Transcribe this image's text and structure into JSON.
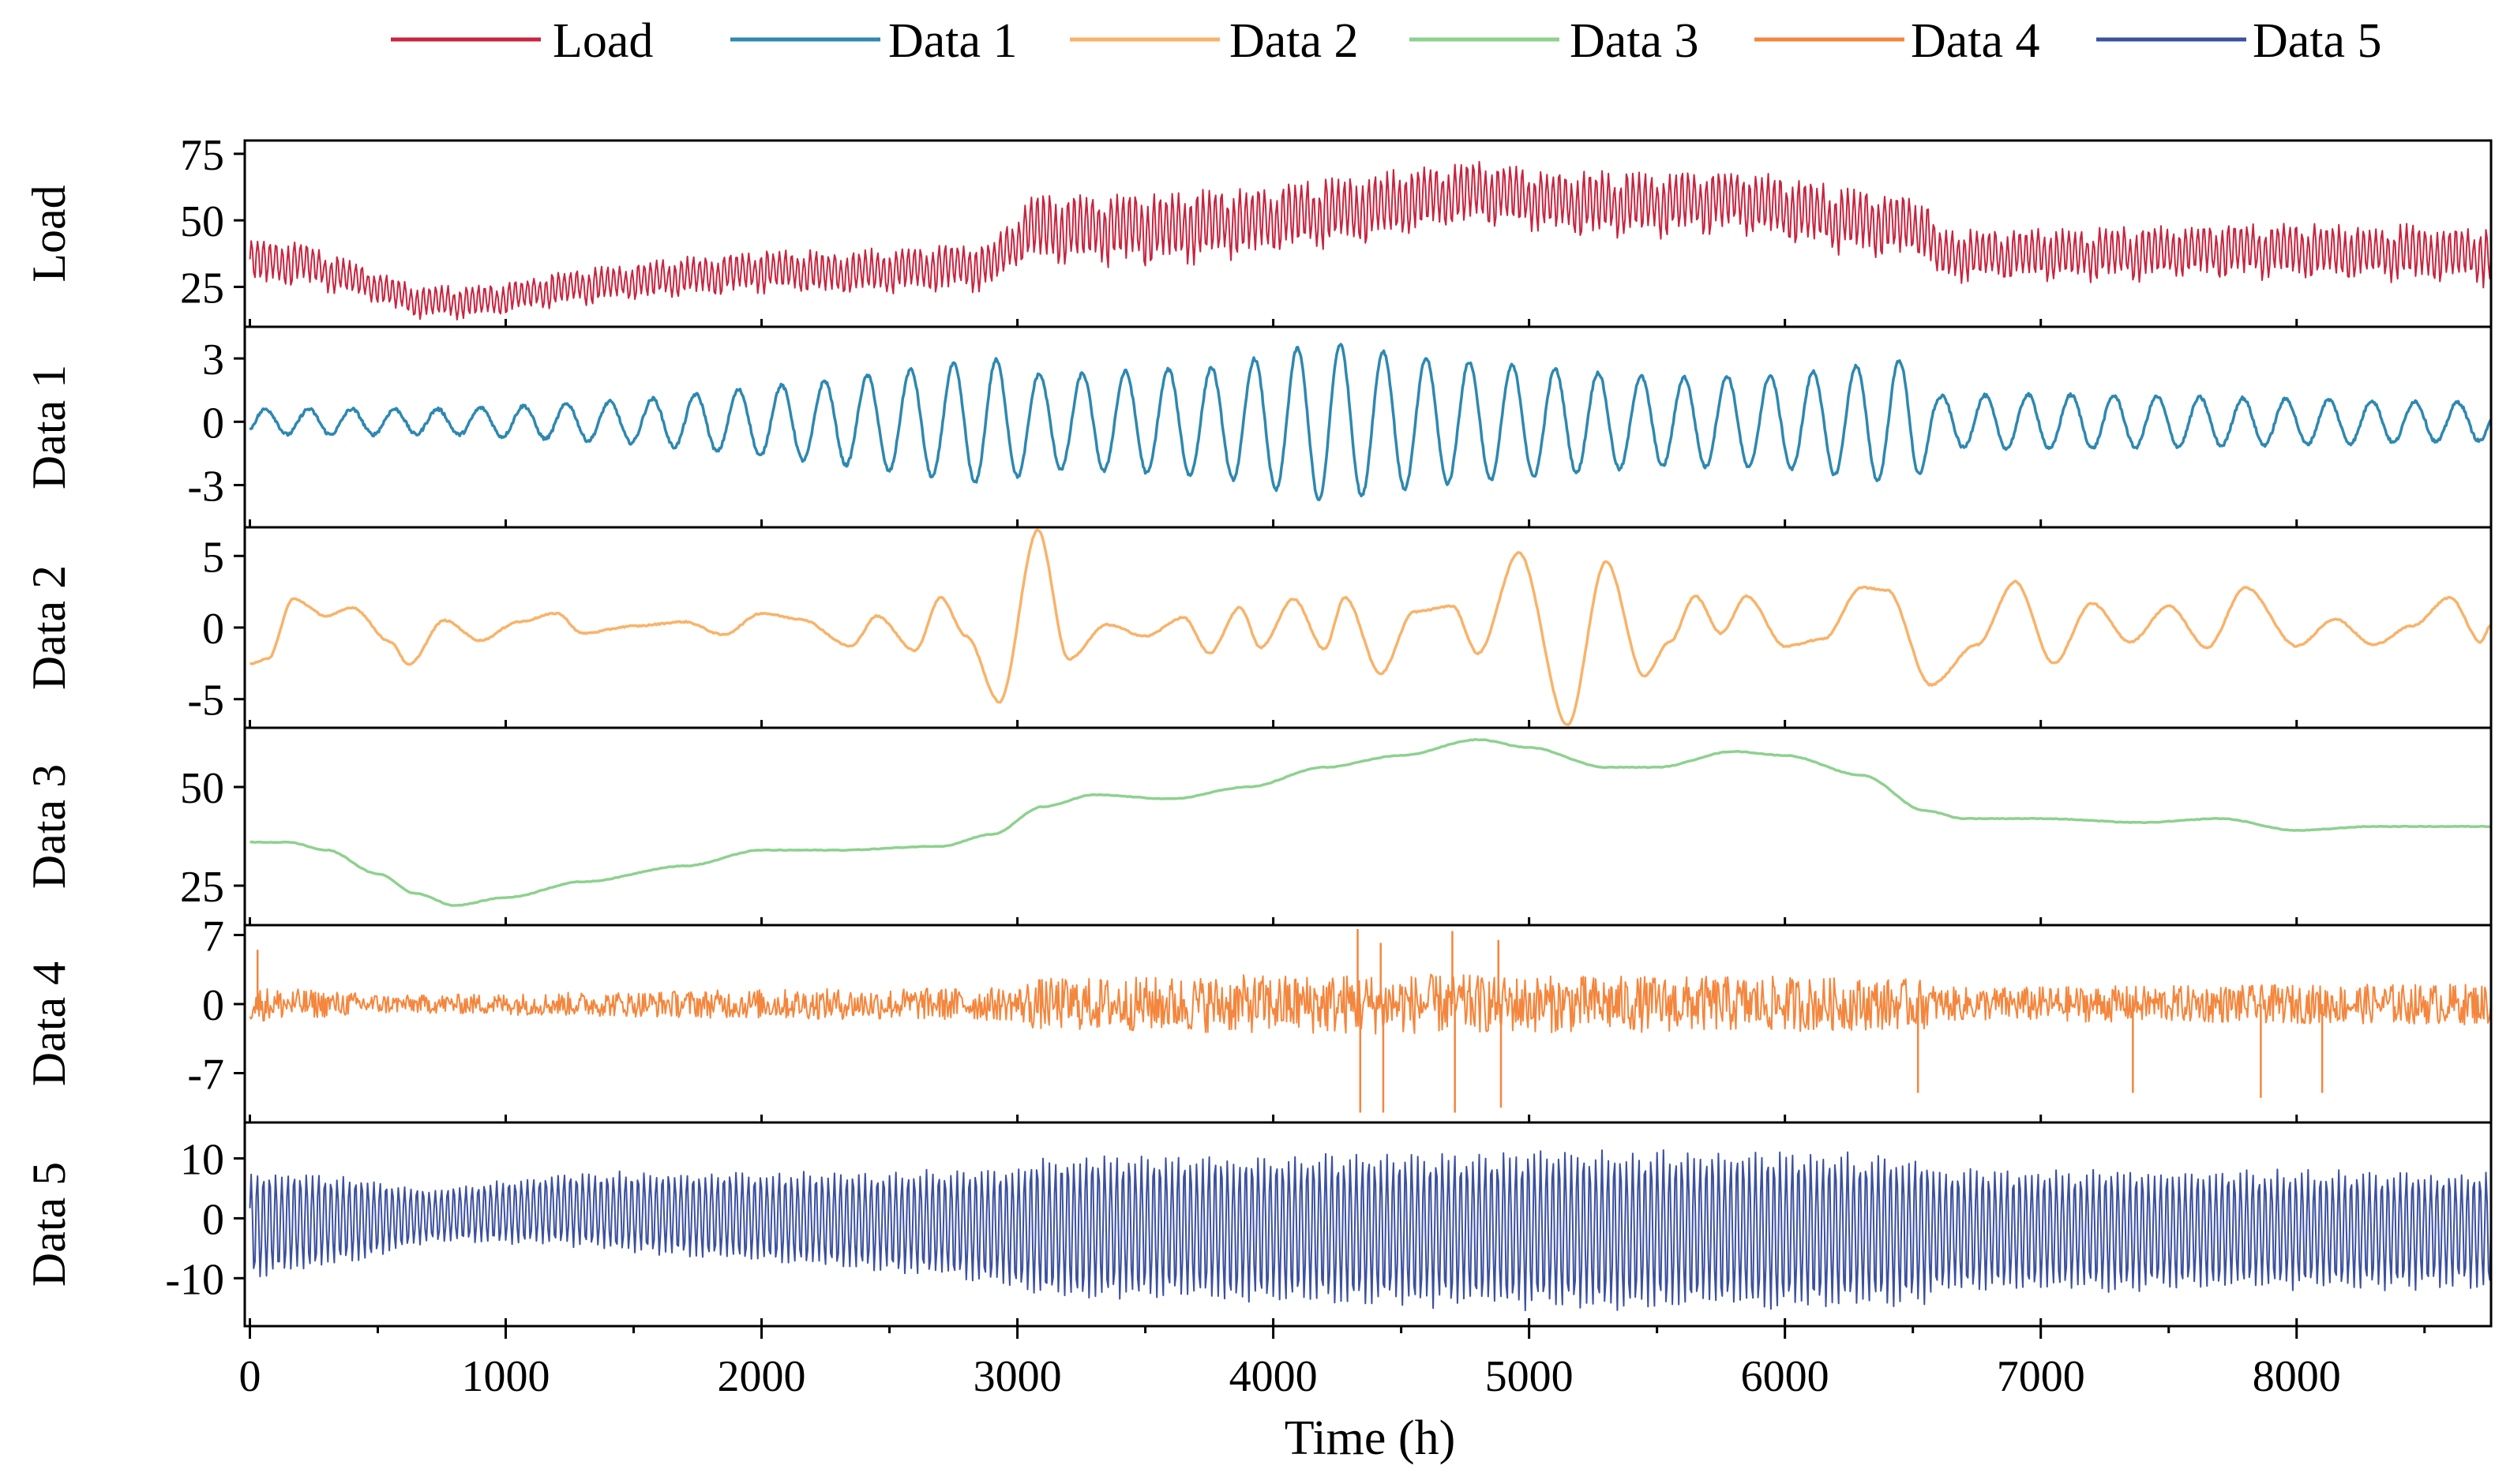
{
  "chart_data": {
    "type": "line",
    "title": "",
    "xlabel": "Time (h)",
    "xlim": [
      -20,
      8760
    ],
    "x_ticks": [
      0,
      1000,
      2000,
      3000,
      4000,
      5000,
      6000,
      7000,
      8000
    ],
    "x_tick_labels": [
      "0",
      "1000",
      "2000",
      "3000",
      "4000",
      "5000",
      "6000",
      "7000",
      "8000"
    ],
    "legend": {
      "placement": "top",
      "entries": [
        "Load",
        "Data 1",
        "Data 2",
        "Data 3",
        "Data 4",
        "Data 5"
      ]
    },
    "panels": [
      {
        "name": "load",
        "ylabel": "Load",
        "color": "#C8243F",
        "ylim": [
          10,
          80
        ],
        "y_ticks": [
          25,
          50,
          75
        ],
        "y_tick_labels": [
          "25",
          "50",
          "75"
        ],
        "step": 5,
        "description": "hourly load with daily oscillation",
        "mean_keypoints": [
          [
            0,
            35
          ],
          [
            200,
            35
          ],
          [
            450,
            27
          ],
          [
            650,
            20
          ],
          [
            900,
            20
          ],
          [
            1300,
            26
          ],
          [
            2000,
            32
          ],
          [
            2300,
            31
          ],
          [
            2900,
            34
          ],
          [
            3050,
            48
          ],
          [
            3500,
            48
          ],
          [
            3900,
            51
          ],
          [
            4300,
            55
          ],
          [
            4800,
            62
          ],
          [
            5100,
            58
          ],
          [
            5500,
            57
          ],
          [
            5800,
            59
          ],
          [
            6200,
            52
          ],
          [
            6550,
            48
          ],
          [
            6600,
            38
          ],
          [
            7200,
            38
          ],
          [
            7700,
            40
          ],
          [
            8300,
            39
          ],
          [
            8760,
            38
          ]
        ],
        "amplitude_keypoints": [
          [
            0,
            8
          ],
          [
            500,
            5
          ],
          [
            900,
            5
          ],
          [
            1600,
            6
          ],
          [
            2500,
            7
          ],
          [
            3000,
            8
          ],
          [
            3100,
            11
          ],
          [
            4000,
            11
          ],
          [
            4800,
            10
          ],
          [
            6500,
            10
          ],
          [
            6600,
            8
          ],
          [
            8760,
            9
          ]
        ]
      },
      {
        "name": "data1",
        "ylabel": "Data 1",
        "color": "#2E88B0",
        "ylim": [
          -5,
          4.5
        ],
        "y_ticks": [
          -3,
          0,
          3
        ],
        "y_tick_labels": [
          "-3",
          "0",
          "3"
        ],
        "step": 4,
        "description": "weekly-period oscillation",
        "period_hours": 168,
        "amplitude_keypoints": [
          [
            0,
            0.6
          ],
          [
            800,
            0.6
          ],
          [
            1500,
            1.0
          ],
          [
            2300,
            2.0
          ],
          [
            2900,
            3.0
          ],
          [
            3100,
            2.2
          ],
          [
            3800,
            2.6
          ],
          [
            4200,
            3.8
          ],
          [
            4600,
            3.0
          ],
          [
            5000,
            2.6
          ],
          [
            5500,
            2.1
          ],
          [
            6000,
            2.2
          ],
          [
            6500,
            3.0
          ],
          [
            6600,
            1.2
          ],
          [
            7000,
            1.3
          ],
          [
            8760,
            0.9
          ]
        ]
      },
      {
        "name": "data2",
        "ylabel": "Data 2",
        "color": "#F8B36A",
        "ylim": [
          -7,
          7
        ],
        "y_ticks": [
          -5,
          0,
          5
        ],
        "y_tick_labels": [
          "-5",
          "0",
          "5"
        ],
        "step": 6,
        "description": "low-frequency component",
        "keypoints": [
          [
            0,
            -2.5
          ],
          [
            70,
            -2.2
          ],
          [
            170,
            2.0
          ],
          [
            300,
            0.8
          ],
          [
            400,
            1.4
          ],
          [
            550,
            -1.0
          ],
          [
            620,
            -2.6
          ],
          [
            760,
            0.5
          ],
          [
            900,
            -0.9
          ],
          [
            1050,
            0.4
          ],
          [
            1200,
            1.0
          ],
          [
            1300,
            -0.4
          ],
          [
            1500,
            0.1
          ],
          [
            1700,
            0.4
          ],
          [
            1850,
            -0.5
          ],
          [
            2000,
            1.0
          ],
          [
            2150,
            0.6
          ],
          [
            2350,
            -1.3
          ],
          [
            2450,
            0.8
          ],
          [
            2600,
            -1.6
          ],
          [
            2700,
            2.1
          ],
          [
            2800,
            -0.6
          ],
          [
            2930,
            -5.2
          ],
          [
            3080,
            6.8
          ],
          [
            3200,
            -2.2
          ],
          [
            3350,
            0.2
          ],
          [
            3500,
            -0.6
          ],
          [
            3650,
            0.7
          ],
          [
            3750,
            -1.8
          ],
          [
            3870,
            1.4
          ],
          [
            3950,
            -1.4
          ],
          [
            4080,
            2.0
          ],
          [
            4200,
            -1.5
          ],
          [
            4280,
            2.1
          ],
          [
            4420,
            -3.2
          ],
          [
            4550,
            1.1
          ],
          [
            4700,
            1.5
          ],
          [
            4800,
            -1.8
          ],
          [
            4960,
            5.2
          ],
          [
            5150,
            -6.8
          ],
          [
            5300,
            4.6
          ],
          [
            5450,
            -3.4
          ],
          [
            5550,
            -1.0
          ],
          [
            5650,
            2.2
          ],
          [
            5750,
            -0.4
          ],
          [
            5850,
            2.2
          ],
          [
            6000,
            -1.3
          ],
          [
            6150,
            -0.8
          ],
          [
            6300,
            2.8
          ],
          [
            6400,
            2.6
          ],
          [
            6570,
            -4.0
          ],
          [
            6750,
            -1.2
          ],
          [
            6900,
            3.2
          ],
          [
            7050,
            -2.5
          ],
          [
            7200,
            1.7
          ],
          [
            7350,
            -1.0
          ],
          [
            7500,
            1.5
          ],
          [
            7650,
            -1.4
          ],
          [
            7800,
            2.8
          ],
          [
            8000,
            -1.3
          ],
          [
            8150,
            0.6
          ],
          [
            8300,
            -1.2
          ],
          [
            8450,
            0.1
          ],
          [
            8600,
            2.1
          ],
          [
            8720,
            -1.0
          ],
          [
            8760,
            0.2
          ]
        ]
      },
      {
        "name": "data3",
        "ylabel": "Data 3",
        "color": "#8ED18F",
        "ylim": [
          15,
          65
        ],
        "y_ticks": [
          25,
          50
        ],
        "y_tick_labels": [
          "25",
          "50"
        ],
        "step": 10,
        "description": "slow trend component",
        "keypoints": [
          [
            0,
            36
          ],
          [
            150,
            36
          ],
          [
            300,
            34
          ],
          [
            500,
            28
          ],
          [
            650,
            23
          ],
          [
            800,
            20
          ],
          [
            1000,
            22
          ],
          [
            1300,
            26
          ],
          [
            1700,
            30
          ],
          [
            2000,
            34
          ],
          [
            2300,
            34
          ],
          [
            2700,
            35
          ],
          [
            2900,
            38
          ],
          [
            3100,
            45
          ],
          [
            3300,
            48
          ],
          [
            3600,
            47
          ],
          [
            3900,
            50
          ],
          [
            4200,
            55
          ],
          [
            4500,
            58
          ],
          [
            4800,
            62
          ],
          [
            5000,
            60
          ],
          [
            5300,
            55
          ],
          [
            5500,
            55
          ],
          [
            5800,
            59
          ],
          [
            6000,
            58
          ],
          [
            6300,
            53
          ],
          [
            6550,
            44
          ],
          [
            6700,
            42
          ],
          [
            7000,
            42
          ],
          [
            7400,
            41
          ],
          [
            7700,
            42
          ],
          [
            8000,
            39
          ],
          [
            8300,
            40
          ],
          [
            8600,
            40
          ],
          [
            8760,
            40
          ]
        ]
      },
      {
        "name": "data4",
        "ylabel": "Data 4",
        "color": "#F4863D",
        "ylim": [
          -12,
          8
        ],
        "y_ticks": [
          -7,
          0,
          7
        ],
        "y_tick_labels": [
          "-7",
          "0",
          "7"
        ],
        "step": 4,
        "description": "high-frequency noise with spikes",
        "amplitude_keypoints": [
          [
            0,
            1.8
          ],
          [
            600,
            0.9
          ],
          [
            1000,
            1.1
          ],
          [
            2000,
            1.5
          ],
          [
            3000,
            1.7
          ],
          [
            3050,
            2.6
          ],
          [
            4300,
            3.1
          ],
          [
            5000,
            2.9
          ],
          [
            6000,
            2.8
          ],
          [
            6550,
            2.5
          ],
          [
            6600,
            1.7
          ],
          [
            8760,
            2.1
          ]
        ],
        "spikes": [
          [
            30,
            5.5
          ],
          [
            4330,
            7.6
          ],
          [
            4340,
            -11
          ],
          [
            4420,
            6.2
          ],
          [
            4430,
            -11
          ],
          [
            4700,
            7.4
          ],
          [
            4710,
            -11
          ],
          [
            4880,
            6.5
          ],
          [
            4890,
            -10.5
          ],
          [
            6520,
            -9
          ],
          [
            7360,
            -9
          ],
          [
            7860,
            -9.5
          ],
          [
            8100,
            -9
          ]
        ]
      },
      {
        "name": "data5",
        "ylabel": "Data 5",
        "color": "#3C50A0",
        "ylim": [
          -18,
          16
        ],
        "y_ticks": [
          -10,
          0,
          10
        ],
        "y_tick_labels": [
          "-10",
          "0",
          "10"
        ],
        "step": 5,
        "description": "daily oscillation component",
        "amplitude_keypoints": [
          [
            0,
            9.5
          ],
          [
            400,
            7.5
          ],
          [
            700,
            4.5
          ],
          [
            1000,
            5.5
          ],
          [
            1500,
            7
          ],
          [
            2500,
            8.5
          ],
          [
            3000,
            10.5
          ],
          [
            3100,
            12.5
          ],
          [
            4000,
            12.5
          ],
          [
            5000,
            13.5
          ],
          [
            6000,
            13.5
          ],
          [
            6550,
            12.5
          ],
          [
            6600,
            10.5
          ],
          [
            8760,
            10
          ]
        ],
        "center_keypoints": [
          [
            0,
            -1
          ],
          [
            700,
            0.5
          ],
          [
            1200,
            1.5
          ],
          [
            3000,
            -1.5
          ],
          [
            5000,
            -2
          ],
          [
            8760,
            -2
          ]
        ]
      }
    ]
  }
}
